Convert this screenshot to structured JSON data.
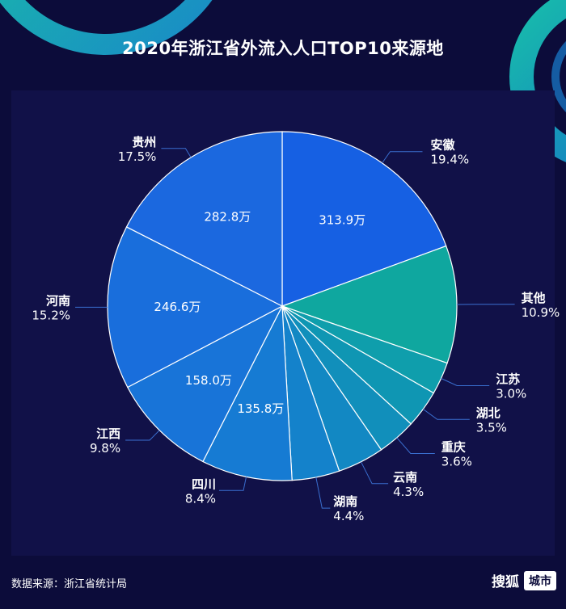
{
  "title": "2020年浙江省外流入人口TOP10来源地",
  "footer": {
    "source": "数据来源：浙江省统计局",
    "brand_name": "搜狐",
    "brand_tag": "城市"
  },
  "colors": {
    "background": "#0c0c3a",
    "leader": "#3a6fd0"
  },
  "chart_data": {
    "type": "pie",
    "title": "2020年浙江省外流入人口TOP10来源地",
    "unit": "万",
    "slices": [
      {
        "label": "安徽",
        "percent": "19.4%",
        "share": 19.4,
        "value_label": "313.9万",
        "color": "#1660e3"
      },
      {
        "label": "其他",
        "percent": "10.9%",
        "share": 10.9,
        "value_label": "",
        "color": "#0fa79f"
      },
      {
        "label": "江苏",
        "percent": "3.0%",
        "share": 3.0,
        "value_label": "",
        "color": "#0f9eac"
      },
      {
        "label": "湖北",
        "percent": "3.5%",
        "share": 3.5,
        "value_label": "",
        "color": "#0f96b3"
      },
      {
        "label": "重庆",
        "percent": "3.6%",
        "share": 3.6,
        "value_label": "",
        "color": "#118fbb"
      },
      {
        "label": "云南",
        "percent": "4.3%",
        "share": 4.3,
        "value_label": "",
        "color": "#1288c3"
      },
      {
        "label": "湖南",
        "percent": "4.4%",
        "share": 4.4,
        "value_label": "",
        "color": "#1482cb"
      },
      {
        "label": "四川",
        "percent": "8.4%",
        "share": 8.4,
        "value_label": "135.8万",
        "color": "#167bd3"
      },
      {
        "label": "江西",
        "percent": "9.8%",
        "share": 9.8,
        "value_label": "158.0万",
        "color": "#1874d8"
      },
      {
        "label": "河南",
        "percent": "15.2%",
        "share": 15.2,
        "value_label": "246.6万",
        "color": "#196edc"
      },
      {
        "label": "贵州",
        "percent": "17.5%",
        "share": 17.5,
        "value_label": "282.8万",
        "color": "#1b68df"
      }
    ]
  }
}
